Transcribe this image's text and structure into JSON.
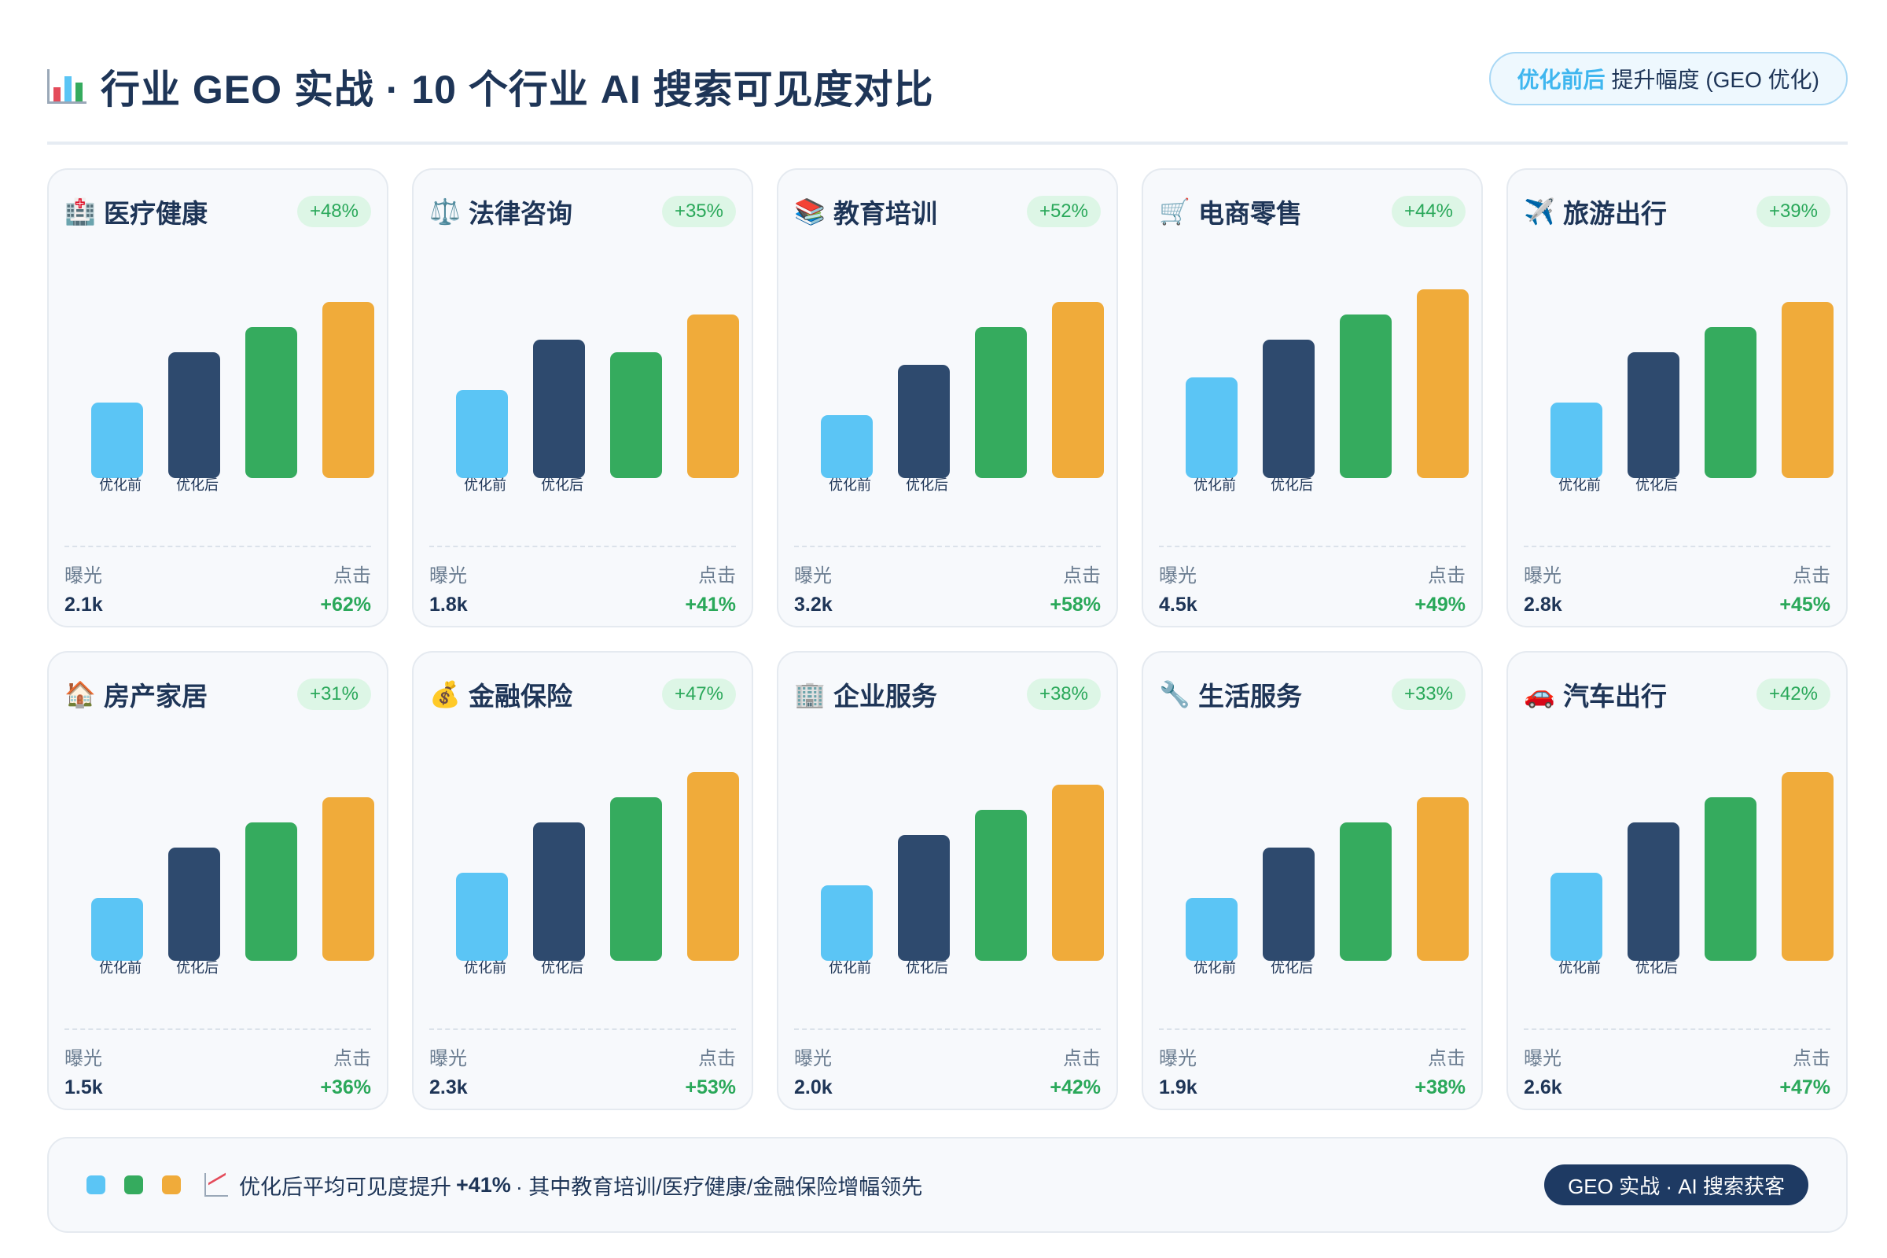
{
  "header": {
    "title": "行业 GEO 实战 · 10 个行业 AI 搜索可见度对比",
    "legend_strong": "优化前后",
    "legend_rest": "提升幅度 (GEO 优化)"
  },
  "colors": {
    "before": "#5bc5f5",
    "after": "#2e4a6e",
    "third": "#35ab5e",
    "fourth": "#f0ab3a",
    "accent_green": "#2aa85a"
  },
  "bar_labels": [
    "优化前",
    "优化后"
  ],
  "stat_labels": {
    "left": "曝光",
    "right": "点击"
  },
  "chart_data": [
    {
      "type": "bar",
      "title": "医疗健康",
      "icon": "hospital-icon",
      "emoji": "🏥",
      "badge": "+48%",
      "values": [
        3,
        5,
        6,
        7
      ],
      "impressions": "2.1k",
      "clicks": "+62%"
    },
    {
      "type": "bar",
      "title": "法律咨询",
      "icon": "scales-icon",
      "emoji": "⚖️",
      "badge": "+35%",
      "values": [
        3.5,
        5.5,
        5,
        6.5
      ],
      "impressions": "1.8k",
      "clicks": "+41%"
    },
    {
      "type": "bar",
      "title": "教育培训",
      "icon": "books-icon",
      "emoji": "📚",
      "badge": "+52%",
      "values": [
        2.5,
        4.5,
        6,
        7
      ],
      "impressions": "3.2k",
      "clicks": "+58%"
    },
    {
      "type": "bar",
      "title": "电商零售",
      "icon": "cart-icon",
      "emoji": "🛒",
      "badge": "+44%",
      "values": [
        4,
        5.5,
        6.5,
        7.5
      ],
      "impressions": "4.5k",
      "clicks": "+49%"
    },
    {
      "type": "bar",
      "title": "旅游出行",
      "icon": "airplane-icon",
      "emoji": "✈️",
      "badge": "+39%",
      "values": [
        3,
        5,
        6,
        7
      ],
      "impressions": "2.8k",
      "clicks": "+45%"
    },
    {
      "type": "bar",
      "title": "房产家居",
      "icon": "house-icon",
      "emoji": "🏠",
      "badge": "+31%",
      "values": [
        2.5,
        4.5,
        5.5,
        6.5
      ],
      "impressions": "1.5k",
      "clicks": "+36%"
    },
    {
      "type": "bar",
      "title": "金融保险",
      "icon": "moneybag-icon",
      "emoji": "💰",
      "badge": "+47%",
      "values": [
        3.5,
        5.5,
        6.5,
        7.5
      ],
      "impressions": "2.3k",
      "clicks": "+53%"
    },
    {
      "type": "bar",
      "title": "企业服务",
      "icon": "office-icon",
      "emoji": "🏢",
      "badge": "+38%",
      "values": [
        3,
        5,
        6,
        7
      ],
      "impressions": "2.0k",
      "clicks": "+42%"
    },
    {
      "type": "bar",
      "title": "生活服务",
      "icon": "wrench-icon",
      "emoji": "🔧",
      "badge": "+33%",
      "values": [
        2.5,
        4.5,
        5.5,
        6.5
      ],
      "impressions": "1.9k",
      "clicks": "+38%"
    },
    {
      "type": "bar",
      "title": "汽车出行",
      "icon": "car-icon",
      "emoji": "🚗",
      "badge": "+42%",
      "values": [
        3.5,
        5.5,
        6.5,
        7.5
      ],
      "impressions": "2.6k",
      "clicks": "+47%"
    }
  ],
  "footer": {
    "text_before": "优化后平均可见度提升 ",
    "highlight": "+41%",
    "text_after": " · 其中教育培训/医疗健康/金融保险增幅领先",
    "pill": "GEO 实战 · AI 搜索获客"
  }
}
